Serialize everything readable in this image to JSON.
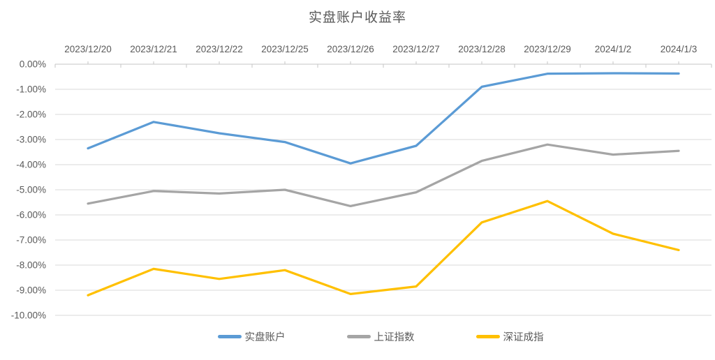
{
  "title": "实盘账户收益率",
  "chart_data": {
    "type": "line",
    "title": "实盘账户收益率",
    "xlabel": "",
    "ylabel": "",
    "categories": [
      "2023/12/20",
      "2023/12/21",
      "2023/12/22",
      "2023/12/25",
      "2023/12/26",
      "2023/12/27",
      "2023/12/28",
      "2023/12/29",
      "2024/1/2",
      "2024/1/3"
    ],
    "series": [
      {
        "name": "实盘账户",
        "color": "#5B9BD5",
        "values": [
          -3.35,
          -2.3,
          -2.75,
          -3.1,
          -3.95,
          -3.25,
          -0.9,
          -0.38,
          -0.36,
          -0.37
        ]
      },
      {
        "name": "上证指数",
        "color": "#A5A5A5",
        "values": [
          -5.55,
          -5.05,
          -5.15,
          -5.0,
          -5.65,
          -5.1,
          -3.85,
          -3.2,
          -3.6,
          -3.45
        ]
      },
      {
        "name": "深证成指",
        "color": "#FFC000",
        "values": [
          -9.2,
          -8.15,
          -8.55,
          -8.2,
          -9.15,
          -8.85,
          -6.3,
          -5.45,
          -6.75,
          -7.4
        ]
      }
    ],
    "ylim": [
      -10,
      0
    ],
    "ytick_step": 1,
    "ytick_labels": [
      "0.00%",
      "-1.00%",
      "-2.00%",
      "-3.00%",
      "-4.00%",
      "-5.00%",
      "-6.00%",
      "-7.00%",
      "-8.00%",
      "-9.00%",
      "-10.00%"
    ],
    "grid": true,
    "gridline_color": "#D9D9D9",
    "axis_line_color": "#C6C6C6",
    "tick_label_color": "#595959",
    "legend_position": "bottom"
  }
}
